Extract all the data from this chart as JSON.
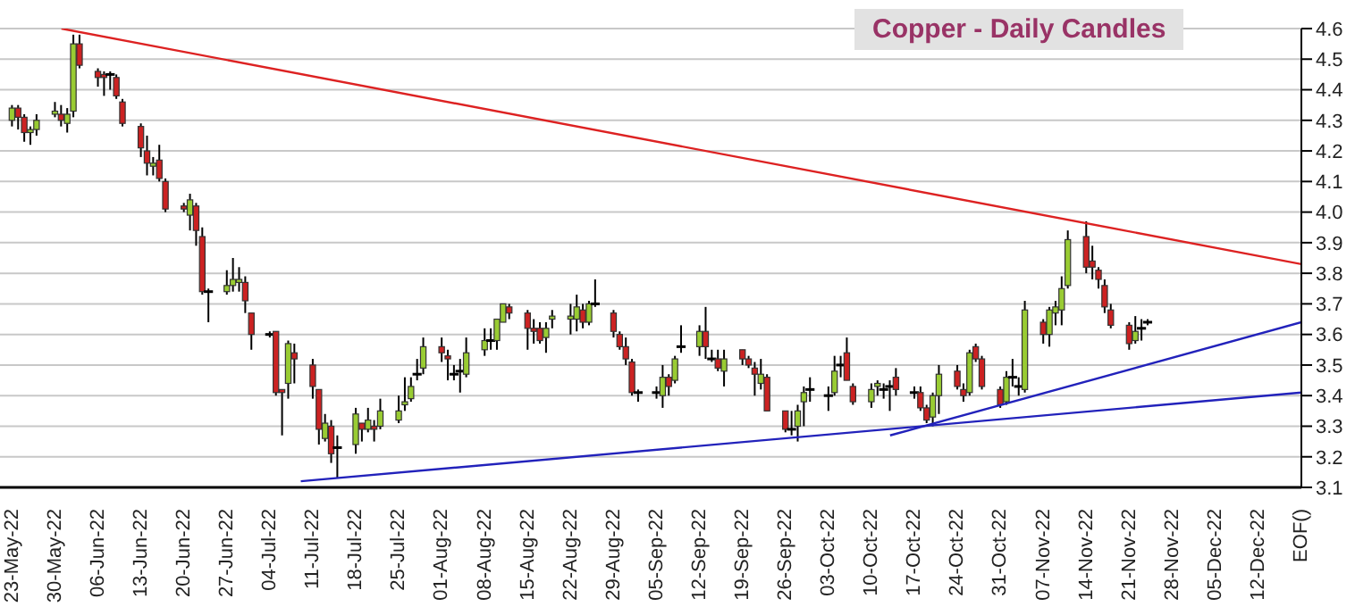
{
  "chart_data": {
    "type": "candlestick",
    "title": "Copper - Daily Candles",
    "x": [
      "--05-23",
      "--05-24",
      "--05-25",
      "--05-26",
      "--05-27",
      "--05-30",
      "--05-31",
      "--06-01",
      "--06-02",
      "--06-03",
      "--06-06",
      "--06-07",
      "--06-08",
      "--06-09",
      "--06-10",
      "--06-13",
      "--06-14",
      "--06-15",
      "--06-16",
      "--06-17",
      "--06-20",
      "--06-21",
      "--06-22",
      "--06-23",
      "--06-24",
      "--06-27",
      "--06-28",
      "--06-29",
      "--06-30",
      "--07-01",
      "--07-04",
      "--07-05",
      "--07-06",
      "--07-07",
      "--07-08",
      "--07-11",
      "--07-12",
      "--07-13",
      "--07-14",
      "--07-15",
      "--07-18",
      "--07-19",
      "--07-20",
      "--07-21",
      "--07-22",
      "--07-25",
      "--07-26",
      "--07-27",
      "--07-28",
      "--07-29",
      "--08-01",
      "--08-02",
      "--08-03",
      "--08-04",
      "--08-05",
      "--08-08",
      "--08-09",
      "--08-10",
      "--08-11",
      "--08-12",
      "--08-15",
      "--08-16",
      "--08-17",
      "--08-18",
      "--08-19",
      "--08-22",
      "--08-23",
      "--08-24",
      "--08-25",
      "--08-26",
      "--08-29",
      "--08-30",
      "--08-31",
      "--09-01",
      "--09-02",
      "--09-05",
      "--09-06",
      "--09-07",
      "--09-08",
      "--09-09",
      "--09-12",
      "--09-13",
      "--09-14",
      "--09-15",
      "--09-16",
      "--09-19",
      "--09-20",
      "--09-21",
      "--09-22",
      "--09-23",
      "--09-26",
      "--09-27",
      "--09-28",
      "--09-29",
      "--09-30",
      "--10-03",
      "--10-04",
      "--10-05",
      "--10-06",
      "--10-07",
      "--10-10",
      "--10-11",
      "--10-12",
      "--10-13",
      "--10-14",
      "--10-17",
      "--10-18",
      "--10-19",
      "--10-20",
      "--10-21",
      "--10-24",
      "--10-25",
      "--10-26",
      "--10-27",
      "--10-28",
      "--10-31",
      "--11-01",
      "--11-02",
      "--11-03",
      "--11-04",
      "--11-07",
      "--11-08",
      "--11-09",
      "--11-10",
      "--11-11",
      "--11-14",
      "--11-15",
      "--11-16",
      "--11-17",
      "--11-18",
      "--11-21",
      "--11-22",
      "--11-23",
      "--11-24"
    ],
    "ohlc": [
      [
        4.3,
        4.35,
        4.28,
        4.34
      ],
      [
        4.34,
        4.35,
        4.27,
        4.31
      ],
      [
        4.31,
        4.32,
        4.23,
        4.26
      ],
      [
        4.26,
        4.28,
        4.22,
        4.27
      ],
      [
        4.27,
        4.32,
        4.25,
        4.3
      ],
      [
        4.32,
        4.36,
        4.31,
        4.33
      ],
      [
        4.32,
        4.35,
        4.28,
        4.3
      ],
      [
        4.29,
        4.34,
        4.26,
        4.32
      ],
      [
        4.33,
        4.58,
        4.31,
        4.55
      ],
      [
        4.55,
        4.58,
        4.47,
        4.48
      ],
      [
        4.46,
        4.47,
        4.41,
        4.44
      ],
      [
        4.45,
        4.46,
        4.38,
        4.44
      ],
      [
        4.45,
        4.46,
        4.4,
        4.45
      ],
      [
        4.44,
        4.45,
        4.37,
        4.38
      ],
      [
        4.36,
        4.37,
        4.28,
        4.29
      ],
      [
        4.28,
        4.29,
        4.18,
        4.21
      ],
      [
        4.2,
        4.25,
        4.12,
        4.16
      ],
      [
        4.15,
        4.18,
        4.12,
        4.16
      ],
      [
        4.17,
        4.22,
        4.1,
        4.11
      ],
      [
        4.1,
        4.11,
        4.0,
        4.01
      ],
      [
        4.02,
        4.03,
        4.0,
        4.01
      ],
      [
        3.99,
        4.06,
        3.94,
        4.04
      ],
      [
        4.02,
        4.03,
        3.89,
        3.94
      ],
      [
        3.92,
        3.95,
        3.73,
        3.74
      ],
      [
        3.74,
        3.75,
        3.64,
        3.74
      ],
      [
        3.74,
        3.81,
        3.73,
        3.76
      ],
      [
        3.76,
        3.85,
        3.74,
        3.78
      ],
      [
        3.77,
        3.82,
        3.74,
        3.78
      ],
      [
        3.77,
        3.79,
        3.67,
        3.71
      ],
      [
        3.67,
        3.67,
        3.55,
        3.6
      ],
      [
        3.6,
        3.61,
        3.59,
        3.6
      ],
      [
        3.61,
        3.61,
        3.4,
        3.41
      ],
      [
        3.42,
        3.42,
        3.27,
        3.41
      ],
      [
        3.44,
        3.58,
        3.39,
        3.57
      ],
      [
        3.54,
        3.57,
        3.44,
        3.52
      ],
      [
        3.5,
        3.52,
        3.39,
        3.43
      ],
      [
        3.42,
        3.42,
        3.24,
        3.29
      ],
      [
        3.26,
        3.34,
        3.25,
        3.31
      ],
      [
        3.3,
        3.32,
        3.18,
        3.21
      ],
      [
        3.23,
        3.27,
        3.13,
        3.23
      ],
      [
        3.24,
        3.36,
        3.21,
        3.34
      ],
      [
        3.31,
        3.31,
        3.25,
        3.29
      ],
      [
        3.29,
        3.36,
        3.28,
        3.32
      ],
      [
        3.3,
        3.32,
        3.25,
        3.29
      ],
      [
        3.3,
        3.39,
        3.29,
        3.35
      ],
      [
        3.32,
        3.4,
        3.31,
        3.35
      ],
      [
        3.37,
        3.46,
        3.35,
        3.38
      ],
      [
        3.39,
        3.46,
        3.38,
        3.43
      ],
      [
        3.47,
        3.52,
        3.45,
        3.47
      ],
      [
        3.49,
        3.59,
        3.47,
        3.56
      ],
      [
        3.56,
        3.59,
        3.51,
        3.54
      ],
      [
        3.53,
        3.55,
        3.45,
        3.52
      ],
      [
        3.47,
        3.5,
        3.45,
        3.47
      ],
      [
        3.48,
        3.52,
        3.41,
        3.48
      ],
      [
        3.47,
        3.59,
        3.46,
        3.54
      ],
      [
        3.55,
        3.62,
        3.53,
        3.58
      ],
      [
        3.58,
        3.62,
        3.55,
        3.58
      ],
      [
        3.58,
        3.65,
        3.55,
        3.65
      ],
      [
        3.64,
        3.7,
        3.64,
        3.7
      ],
      [
        3.69,
        3.7,
        3.65,
        3.67
      ],
      [
        3.67,
        3.68,
        3.55,
        3.62
      ],
      [
        3.62,
        3.65,
        3.57,
        3.61
      ],
      [
        3.62,
        3.64,
        3.57,
        3.58
      ],
      [
        3.59,
        3.64,
        3.54,
        3.62
      ],
      [
        3.65,
        3.68,
        3.62,
        3.66
      ],
      [
        3.65,
        3.7,
        3.6,
        3.66
      ],
      [
        3.65,
        3.73,
        3.61,
        3.69
      ],
      [
        3.68,
        3.7,
        3.62,
        3.64
      ],
      [
        3.64,
        3.71,
        3.63,
        3.7
      ],
      [
        3.7,
        3.78,
        3.69,
        3.7
      ],
      [
        3.67,
        3.68,
        3.59,
        3.61
      ],
      [
        3.6,
        3.61,
        3.55,
        3.56
      ],
      [
        3.56,
        3.59,
        3.5,
        3.52
      ],
      [
        3.51,
        3.52,
        3.4,
        3.41
      ],
      [
        3.41,
        3.42,
        3.38,
        3.41
      ],
      [
        3.41,
        3.43,
        3.39,
        3.41
      ],
      [
        3.4,
        3.5,
        3.36,
        3.46
      ],
      [
        3.46,
        3.47,
        3.4,
        3.43
      ],
      [
        3.45,
        3.53,
        3.44,
        3.52
      ],
      [
        3.56,
        3.63,
        3.54,
        3.56
      ],
      [
        3.56,
        3.63,
        3.53,
        3.61
      ],
      [
        3.61,
        3.69,
        3.52,
        3.56
      ],
      [
        3.52,
        3.55,
        3.51,
        3.52
      ],
      [
        3.52,
        3.55,
        3.48,
        3.49
      ],
      [
        3.48,
        3.55,
        3.43,
        3.52
      ],
      [
        3.55,
        3.55,
        3.5,
        3.52
      ],
      [
        3.52,
        3.53,
        3.49,
        3.5
      ],
      [
        3.49,
        3.51,
        3.4,
        3.47
      ],
      [
        3.44,
        3.52,
        3.42,
        3.47
      ],
      [
        3.46,
        3.47,
        3.35,
        3.35
      ],
      [
        3.35,
        3.35,
        3.28,
        3.29
      ],
      [
        3.29,
        3.35,
        3.27,
        3.29
      ],
      [
        3.3,
        3.37,
        3.25,
        3.35
      ],
      [
        3.38,
        3.43,
        3.3,
        3.41
      ],
      [
        3.42,
        3.46,
        3.38,
        3.42
      ],
      [
        3.4,
        3.43,
        3.35,
        3.4
      ],
      [
        3.41,
        3.53,
        3.4,
        3.48
      ],
      [
        3.5,
        3.53,
        3.46,
        3.5
      ],
      [
        3.54,
        3.59,
        3.45,
        3.45
      ],
      [
        3.43,
        3.44,
        3.37,
        3.38
      ],
      [
        3.38,
        3.44,
        3.36,
        3.42
      ],
      [
        3.43,
        3.45,
        3.4,
        3.44
      ],
      [
        3.42,
        3.44,
        3.39,
        3.42
      ],
      [
        3.43,
        3.45,
        3.35,
        3.43
      ],
      [
        3.46,
        3.49,
        3.4,
        3.42
      ],
      [
        3.41,
        3.43,
        3.39,
        3.41
      ],
      [
        3.41,
        3.43,
        3.35,
        3.36
      ],
      [
        3.36,
        3.37,
        3.31,
        3.32
      ],
      [
        3.33,
        3.41,
        3.3,
        3.4
      ],
      [
        3.4,
        3.5,
        3.34,
        3.47
      ],
      [
        3.48,
        3.5,
        3.42,
        3.43
      ],
      [
        3.42,
        3.44,
        3.38,
        3.4
      ],
      [
        3.41,
        3.55,
        3.4,
        3.54
      ],
      [
        3.56,
        3.57,
        3.51,
        3.52
      ],
      [
        3.52,
        3.53,
        3.42,
        3.43
      ],
      [
        3.42,
        3.43,
        3.36,
        3.37
      ],
      [
        3.38,
        3.48,
        3.37,
        3.46
      ],
      [
        3.46,
        3.52,
        3.43,
        3.46
      ],
      [
        3.43,
        3.46,
        3.4,
        3.43
      ],
      [
        3.42,
        3.71,
        3.41,
        3.68
      ],
      [
        3.64,
        3.65,
        3.57,
        3.6
      ],
      [
        3.6,
        3.69,
        3.56,
        3.68
      ],
      [
        3.67,
        3.71,
        3.63,
        3.69
      ],
      [
        3.68,
        3.79,
        3.63,
        3.75
      ],
      [
        3.76,
        3.94,
        3.75,
        3.91
      ],
      [
        3.92,
        3.97,
        3.8,
        3.82
      ],
      [
        3.84,
        3.89,
        3.78,
        3.82
      ],
      [
        3.81,
        3.82,
        3.75,
        3.78
      ],
      [
        3.76,
        3.78,
        3.67,
        3.69
      ],
      [
        3.68,
        3.7,
        3.62,
        3.63
      ],
      [
        3.63,
        3.64,
        3.55,
        3.57
      ],
      [
        3.58,
        3.66,
        3.57,
        3.61
      ],
      [
        3.62,
        3.65,
        3.58,
        3.62
      ],
      [
        3.64,
        3.65,
        3.63,
        3.64
      ]
    ],
    "colors": [
      "#99cc33",
      "#cc2222",
      "#cc2222",
      "#99cc33",
      "#99cc33",
      "#99cc33",
      "#cc2222",
      "#99cc33",
      "#99cc33",
      "#cc2222",
      "#cc2222",
      "#cc2222",
      "#000000",
      "#cc2222",
      "#cc2222",
      "#cc2222",
      "#cc2222",
      "#99cc33",
      "#cc2222",
      "#cc2222",
      "#cc2222",
      "#99cc33",
      "#cc2222",
      "#cc2222",
      "#000000",
      "#99cc33",
      "#99cc33",
      "#99cc33",
      "#cc2222",
      "#cc2222",
      "#000000",
      "#cc2222",
      "#cc2222",
      "#99cc33",
      "#cc2222",
      "#cc2222",
      "#cc2222",
      "#99cc33",
      "#cc2222",
      "#000000",
      "#99cc33",
      "#cc2222",
      "#99cc33",
      "#cc2222",
      "#99cc33",
      "#99cc33",
      "#99cc33",
      "#99cc33",
      "#000000",
      "#99cc33",
      "#cc2222",
      "#cc2222",
      "#000000",
      "#000000",
      "#99cc33",
      "#99cc33",
      "#000000",
      "#99cc33",
      "#99cc33",
      "#cc2222",
      "#cc2222",
      "#cc2222",
      "#cc2222",
      "#99cc33",
      "#99cc33",
      "#99cc33",
      "#99cc33",
      "#cc2222",
      "#99cc33",
      "#000000",
      "#cc2222",
      "#cc2222",
      "#cc2222",
      "#cc2222",
      "#000000",
      "#000000",
      "#99cc33",
      "#cc2222",
      "#99cc33",
      "#000000",
      "#99cc33",
      "#cc2222",
      "#000000",
      "#cc2222",
      "#99cc33",
      "#cc2222",
      "#cc2222",
      "#cc2222",
      "#99cc33",
      "#cc2222",
      "#cc2222",
      "#000000",
      "#99cc33",
      "#99cc33",
      "#000000",
      "#000000",
      "#99cc33",
      "#000000",
      "#cc2222",
      "#cc2222",
      "#99cc33",
      "#99cc33",
      "#000000",
      "#000000",
      "#cc2222",
      "#000000",
      "#cc2222",
      "#cc2222",
      "#99cc33",
      "#99cc33",
      "#cc2222",
      "#cc2222",
      "#99cc33",
      "#cc2222",
      "#cc2222",
      "#cc2222",
      "#99cc33",
      "#000000",
      "#000000",
      "#99cc33",
      "#cc2222",
      "#99cc33",
      "#99cc33",
      "#99cc33",
      "#99cc33",
      "#cc2222",
      "#cc2222",
      "#cc2222",
      "#cc2222",
      "#cc2222",
      "#cc2222",
      "#99cc33",
      "#000000",
      "#000000"
    ],
    "series": [
      {
        "type": "line",
        "color": "#dd2222",
        "x": [
          "--05-31",
          "--12-19"
        ],
        "values": [
          4.6,
          3.83
        ]
      },
      {
        "type": "line",
        "color": "#2222bb",
        "x": [
          "--07-09",
          "--12-19"
        ],
        "values": [
          3.12,
          3.41
        ]
      },
      {
        "type": "line",
        "color": "#2222bb",
        "x": [
          "--10-13",
          "--12-19"
        ],
        "values": [
          3.27,
          3.64
        ]
      }
    ],
    "xlim": [
      "--05-21",
      "--12-19"
    ],
    "xticks": [
      {
        "value": "--05-23",
        "label": "23-May-22"
      },
      {
        "value": "--05-30",
        "label": "30-May-22"
      },
      {
        "value": "--06-06",
        "label": "06-Jun-22"
      },
      {
        "value": "--06-13",
        "label": "13-Jun-22"
      },
      {
        "value": "--06-20",
        "label": "20-Jun-22"
      },
      {
        "value": "--06-27",
        "label": "27-Jun-22"
      },
      {
        "value": "--07-04",
        "label": "04-Jul-22"
      },
      {
        "value": "--07-11",
        "label": "11-Jul-22"
      },
      {
        "value": "--07-18",
        "label": "18-Jul-22"
      },
      {
        "value": "--07-25",
        "label": "25-Jul-22"
      },
      {
        "value": "--08-01",
        "label": "01-Aug-22"
      },
      {
        "value": "--08-08",
        "label": "08-Aug-22"
      },
      {
        "value": "--08-15",
        "label": "15-Aug-22"
      },
      {
        "value": "--08-22",
        "label": "22-Aug-22"
      },
      {
        "value": "--08-29",
        "label": "29-Aug-22"
      },
      {
        "value": "--09-05",
        "label": "05-Sep-22"
      },
      {
        "value": "--09-12",
        "label": "12-Sep-22"
      },
      {
        "value": "--09-19",
        "label": "19-Sep-22"
      },
      {
        "value": "--09-26",
        "label": "26-Sep-22"
      },
      {
        "value": "--10-03",
        "label": "03-Oct-22"
      },
      {
        "value": "--10-10",
        "label": "10-Oct-22"
      },
      {
        "value": "--10-17",
        "label": "17-Oct-22"
      },
      {
        "value": "--10-24",
        "label": "24-Oct-22"
      },
      {
        "value": "--10-31",
        "label": "31-Oct-22"
      },
      {
        "value": "--11-07",
        "label": "07-Nov-22"
      },
      {
        "value": "--11-14",
        "label": "14-Nov-22"
      },
      {
        "value": "--11-21",
        "label": "21-Nov-22"
      },
      {
        "value": "--11-28",
        "label": "28-Nov-22"
      },
      {
        "value": "--12-05",
        "label": "05-Dec-22"
      },
      {
        "value": "--12-12",
        "label": "12-Dec-22"
      },
      {
        "value": "--12-19",
        "label": "EOF()"
      }
    ],
    "ylim": [
      3.1,
      4.6
    ],
    "yticks": [
      3.1,
      3.2,
      3.3,
      3.4,
      3.5,
      3.6,
      3.7,
      3.8,
      3.9,
      {
        "value": 4,
        "label": "4.0"
      },
      4.1,
      4.2,
      4.3,
      4.4,
      4.5,
      4.6
    ],
    "grid": "y"
  }
}
